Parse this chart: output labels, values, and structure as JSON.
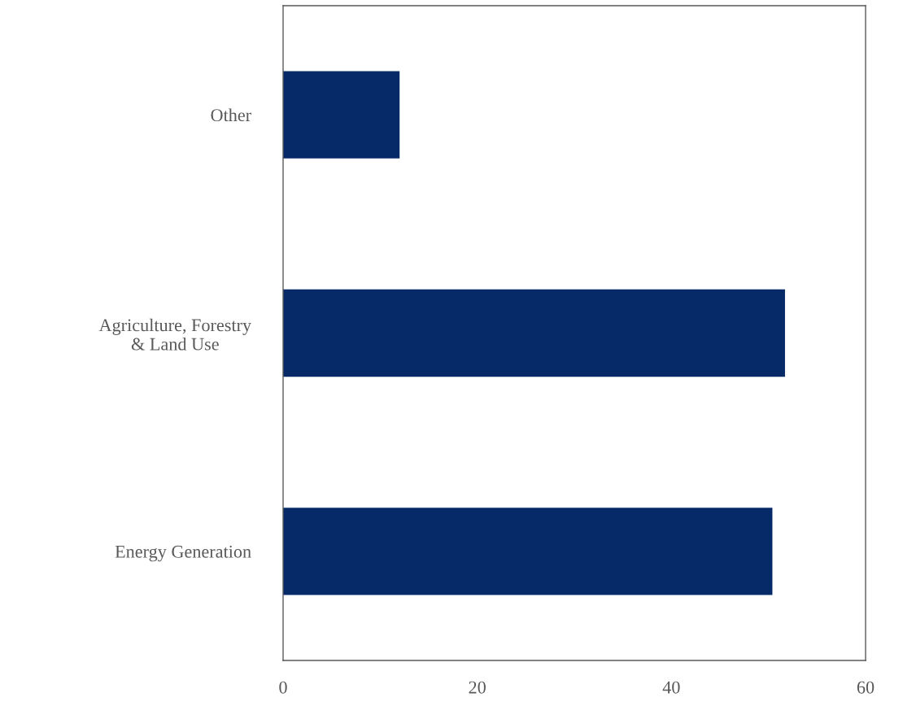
{
  "chart_data": {
    "type": "bar",
    "orientation": "horizontal",
    "categories": [
      "Other",
      "Agriculture, Forestry\n& Land Use",
      "Energy Generation"
    ],
    "values": [
      12,
      51.7,
      50.4
    ],
    "color": "#062a68",
    "xlim": [
      0,
      60
    ],
    "xticks": [
      0,
      20,
      40,
      60
    ],
    "grid": false,
    "legend": false
  }
}
